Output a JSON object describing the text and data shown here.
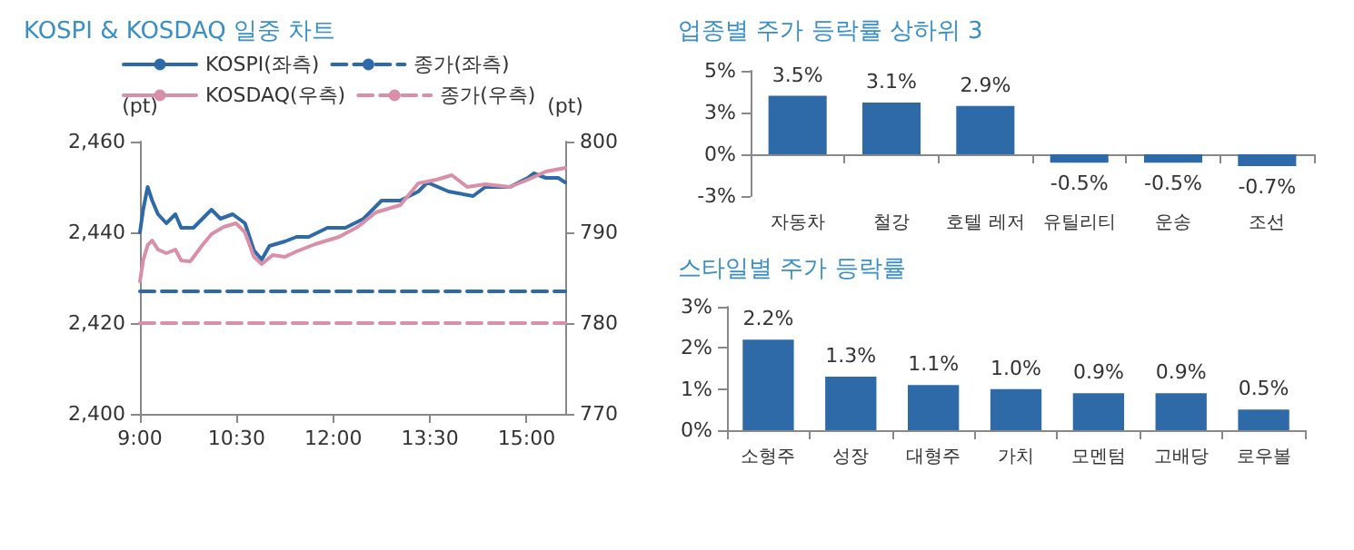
{
  "chart_data": [
    {
      "type": "line",
      "title": "KOSPI & KOSDAQ 일중 차트",
      "ylabel": "(pt)",
      "y2label": "(pt)",
      "legend": "top",
      "xlim": [
        9,
        15.6
      ],
      "xticks": [
        {
          "value": 9,
          "label": "9:00"
        },
        {
          "value": 10.5,
          "label": "10:30"
        },
        {
          "value": 12,
          "label": "12:00"
        },
        {
          "value": 13.5,
          "label": "13:30"
        },
        {
          "value": 15,
          "label": "15:00"
        }
      ],
      "ylim": [
        2400,
        2460
      ],
      "yticks": [
        {
          "value": 2400,
          "label": "2,400"
        },
        {
          "value": 2420,
          "label": "2,420"
        },
        {
          "value": 2440,
          "label": "2,440"
        },
        {
          "value": 2460,
          "label": "2,460"
        }
      ],
      "y2lim": [
        770,
        800
      ],
      "y2ticks": [
        770,
        780,
        790,
        800
      ],
      "series": [
        {
          "name": "KOSPI(좌측)",
          "color": "#2e6aa8",
          "line_style": "solid",
          "x": [
            9,
            9.05,
            9.12,
            9.19,
            9.28,
            9.41,
            9.55,
            9.64,
            9.83,
            9.97,
            10.11,
            10.25,
            10.44,
            10.63,
            10.77,
            10.89,
            11.01,
            11.25,
            11.43,
            11.62,
            11.91,
            12.19,
            12.47,
            12.75,
            13.04,
            13.32,
            13.46,
            13.79,
            14.17,
            14.36,
            14.74,
            15.02,
            15.11,
            15.3,
            15.49,
            15.6
          ],
          "values": [
            2440,
            2445,
            2450,
            2447,
            2444,
            2442,
            2444,
            2441,
            2441,
            2443,
            2445,
            2443,
            2444,
            2442,
            2436,
            2434,
            2437,
            2438,
            2439,
            2439,
            2441,
            2441,
            2443,
            2447,
            2447,
            2449,
            2451,
            2449,
            2448,
            2450,
            2450,
            2452,
            2453,
            2452,
            2452,
            2451
          ]
        },
        {
          "name": "종가(좌측)",
          "color": "#2e6aa8",
          "line_style": "dashed",
          "x": [
            9,
            15.6
          ],
          "values": [
            2427,
            2427
          ]
        },
        {
          "name": "KOSDAQ(우측)",
          "color": "#d98fa8",
          "line_style": "solid",
          "axis": "y2",
          "x": [
            9,
            9.05,
            9.12,
            9.19,
            9.28,
            9.41,
            9.55,
            9.64,
            9.78,
            9.97,
            10.11,
            10.3,
            10.49,
            10.63,
            10.77,
            10.89,
            11.06,
            11.25,
            11.43,
            11.72,
            12.09,
            12.38,
            12.66,
            13.04,
            13.32,
            13.6,
            13.84,
            14.08,
            14.36,
            14.74,
            15.02,
            15.3,
            15.6
          ],
          "values": [
            784.6,
            786.9,
            788.6,
            789.1,
            788.1,
            787.7,
            788.1,
            786.9,
            786.8,
            788.6,
            789.8,
            790.6,
            791,
            790,
            787.3,
            786.5,
            787.5,
            787.3,
            787.9,
            788.7,
            789.5,
            790.6,
            792.2,
            793,
            795.4,
            795.8,
            796.3,
            795,
            795.3,
            795,
            795.8,
            796.7,
            797.1
          ]
        },
        {
          "name": "종가(우측)",
          "color": "#d98fa8",
          "line_style": "dashed",
          "axis": "y2",
          "x": [
            9,
            15.6
          ],
          "values": [
            780,
            780
          ]
        }
      ]
    },
    {
      "type": "bar",
      "title": "업종별 주가 등락률 상하위 3",
      "categories": [
        "자동차",
        "철강",
        "호텔 레저",
        "유틸리티",
        "운송",
        "조선"
      ],
      "values": [
        3.5,
        3.1,
        2.9,
        -0.5,
        -0.5,
        -0.7
      ],
      "value_labels": [
        "3.5%",
        "3.1%",
        "2.9%",
        "-0.5%",
        "-0.5%",
        "-0.7%"
      ],
      "color": "#2e6aa8",
      "ylim": [
        -2.5,
        5
      ],
      "yticks": [
        {
          "value": -2.5,
          "label": "-3%"
        },
        {
          "value": 0,
          "label": "0%"
        },
        {
          "value": 2.5,
          "label": "3%"
        },
        {
          "value": 5,
          "label": "5%"
        }
      ]
    },
    {
      "type": "bar",
      "title": "스타일별 주가 등락률",
      "categories": [
        "소형주",
        "성장",
        "대형주",
        "가치",
        "모멘텀",
        "고배당",
        "로우볼"
      ],
      "values": [
        2.2,
        1.3,
        1.1,
        1.0,
        0.9,
        0.9,
        0.5
      ],
      "value_labels": [
        "2.2%",
        "1.3%",
        "1.1%",
        "1.0%",
        "0.9%",
        "0.9%",
        "0.5%"
      ],
      "color": "#2e6aa8",
      "ylim": [
        0,
        3
      ],
      "yticks": [
        {
          "value": 0,
          "label": "0%"
        },
        {
          "value": 1,
          "label": "1%"
        },
        {
          "value": 2,
          "label": "2%"
        },
        {
          "value": 3,
          "label": "3%"
        }
      ]
    }
  ]
}
